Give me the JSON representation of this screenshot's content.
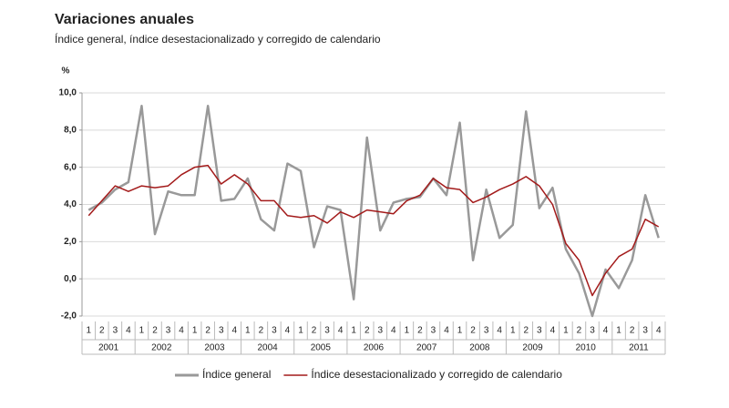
{
  "chart_data": {
    "type": "line",
    "title": "Variaciones anuales",
    "subtitle": "Índice general, índice desestacionalizado y corregido de calendario",
    "y_label": "%",
    "categories": [
      "1",
      "2",
      "3",
      "4",
      "1",
      "2",
      "3",
      "4",
      "1",
      "2",
      "3",
      "4",
      "1",
      "2",
      "3",
      "4",
      "1",
      "2",
      "3",
      "4",
      "1",
      "2",
      "3",
      "4",
      "1",
      "2",
      "3",
      "4",
      "1",
      "2",
      "3",
      "4",
      "1",
      "2",
      "3",
      "4",
      "1",
      "2",
      "3",
      "4",
      "1",
      "2",
      "3",
      "4"
    ],
    "years": [
      "2001",
      "2002",
      "2003",
      "2004",
      "2005",
      "2006",
      "2007",
      "2008",
      "2009",
      "2010",
      "2011"
    ],
    "series": [
      {
        "name": "Índice general",
        "color": "#999999",
        "values": [
          3.7,
          4.1,
          4.8,
          5.2,
          9.3,
          2.4,
          4.7,
          4.5,
          4.5,
          9.3,
          4.2,
          4.3,
          5.4,
          3.2,
          2.6,
          6.2,
          5.8,
          1.7,
          3.9,
          3.7,
          -1.1,
          7.6,
          2.6,
          4.1,
          4.3,
          4.4,
          5.4,
          4.5,
          8.4,
          1.0,
          4.8,
          2.2,
          2.9,
          9.0,
          3.8,
          4.9,
          1.6,
          0.3,
          -2.0,
          0.5,
          -0.5,
          1.0,
          4.5,
          2.2
        ]
      },
      {
        "name": "Índice desestacionalizado y corregido de calendario",
        "color": "#a31a1a",
        "values": [
          3.4,
          4.2,
          5.0,
          4.7,
          5.0,
          4.9,
          5.0,
          5.6,
          6.0,
          6.1,
          5.1,
          5.6,
          5.1,
          4.2,
          4.2,
          3.4,
          3.3,
          3.4,
          3.0,
          3.6,
          3.3,
          3.7,
          3.6,
          3.5,
          4.2,
          4.5,
          5.4,
          4.9,
          4.8,
          4.1,
          4.4,
          4.8,
          5.1,
          5.5,
          5.0,
          4.0,
          1.9,
          1.0,
          -0.9,
          0.3,
          1.2,
          1.6,
          3.2,
          2.8
        ]
      }
    ],
    "ylim": [
      -2,
      10
    ],
    "yticks": [
      {
        "value": -2,
        "label": "-2,0"
      },
      {
        "value": 0,
        "label": "0,0"
      },
      {
        "value": 2,
        "label": "2,0"
      },
      {
        "value": 4,
        "label": "4,0"
      },
      {
        "value": 6,
        "label": "6,0"
      },
      {
        "value": 8,
        "label": "8,0"
      },
      {
        "value": 10,
        "label": "10,0"
      }
    ],
    "grid": true,
    "legend": "bottom"
  }
}
